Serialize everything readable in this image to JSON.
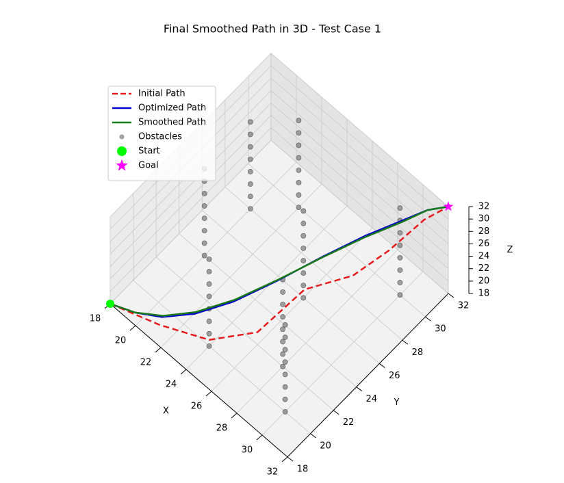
{
  "chart_data": {
    "type": "line3d",
    "title": "Final Smoothed Path in 3D - Test Case 1",
    "xlabel": "X",
    "ylabel": "Y",
    "zlabel": "Z",
    "xlim": [
      18,
      32
    ],
    "ylim": [
      18,
      32
    ],
    "zlim": [
      18,
      32
    ],
    "xticks": [
      18,
      20,
      22,
      24,
      26,
      28,
      30,
      32
    ],
    "yticks": [
      18,
      20,
      22,
      24,
      26,
      28,
      30,
      32
    ],
    "zticks": [
      18,
      20,
      22,
      24,
      26,
      28,
      30,
      32
    ],
    "grid": true,
    "legend": "upper left",
    "series": [
      {
        "name": "Obstacles",
        "type": "scatter",
        "marker": "circle",
        "color": "#808080",
        "x": [
          20,
          20,
          20,
          20,
          20,
          20,
          20,
          20,
          20,
          20,
          20,
          20,
          20,
          20,
          20,
          20,
          22,
          22,
          22,
          22,
          22,
          22,
          22,
          22,
          24,
          24,
          24,
          24,
          24,
          24,
          24,
          24,
          26,
          26,
          26,
          26,
          26,
          26,
          26,
          26,
          28,
          28,
          28,
          28,
          28,
          28,
          28,
          28,
          30,
          30,
          30,
          30,
          30,
          30,
          30,
          30,
          30,
          30,
          30,
          30,
          30,
          30,
          30,
          30
        ],
        "y": [
          24,
          24,
          24,
          24,
          24,
          24,
          24,
          24,
          28,
          28,
          28,
          28,
          28,
          28,
          28,
          28,
          30,
          30,
          30,
          30,
          30,
          30,
          30,
          30,
          20,
          20,
          20,
          20,
          20,
          20,
          20,
          20,
          26,
          26,
          26,
          26,
          26,
          26,
          26,
          26,
          22,
          22,
          22,
          22,
          22,
          22,
          22,
          22,
          30,
          30,
          30,
          30,
          30,
          30,
          30,
          30,
          20,
          20,
          20,
          20,
          20,
          20,
          20,
          20
        ],
        "z": [
          18,
          20,
          22,
          24,
          26,
          28,
          30,
          32,
          18,
          20,
          22,
          24,
          26,
          28,
          30,
          32,
          18,
          20,
          22,
          24,
          26,
          28,
          30,
          32,
          18,
          20,
          22,
          24,
          26,
          28,
          30,
          32,
          18,
          20,
          22,
          24,
          26,
          28,
          30,
          32,
          18,
          20,
          22,
          24,
          26,
          28,
          30,
          32,
          18,
          20,
          22,
          24,
          26,
          28,
          30,
          32,
          18,
          20,
          22,
          24,
          26,
          28,
          30,
          32
        ]
      },
      {
        "name": "Initial Path",
        "type": "line",
        "linestyle": "dashed",
        "color": "#e41a1c",
        "x": [
          18,
          21,
          24,
          26,
          27,
          29,
          30,
          31,
          32
        ],
        "y": [
          18,
          19,
          20,
          22,
          25,
          27,
          29,
          31,
          32
        ],
        "z": [
          18,
          18,
          19,
          20,
          23,
          25,
          27,
          30,
          32
        ]
      },
      {
        "name": "Optimized Path",
        "type": "line",
        "linestyle": "solid",
        "color": "#0000cc",
        "x": [
          18,
          19.5,
          21,
          22.5,
          24,
          25.5,
          27,
          28.5,
          30,
          31,
          32
        ],
        "y": [
          18,
          18.5,
          19.2,
          20.4,
          22.1,
          24.3,
          26.6,
          28.6,
          30.3,
          31.3,
          32
        ],
        "z": [
          18,
          18.3,
          18.9,
          19.8,
          21.2,
          23.1,
          25.3,
          27.5,
          29.5,
          31,
          32
        ]
      },
      {
        "name": "Smoothed Path",
        "type": "line",
        "linestyle": "solid",
        "color": "#1a7a1a",
        "x": [
          18,
          19.5,
          21,
          22.5,
          24,
          25.5,
          27,
          28.5,
          30,
          31,
          32
        ],
        "y": [
          18,
          18.5,
          19.3,
          20.5,
          22.2,
          24.3,
          26.5,
          28.5,
          30.2,
          31.3,
          32
        ],
        "z": [
          18,
          18.3,
          18.9,
          19.9,
          21.3,
          23.2,
          25.3,
          27.4,
          29.4,
          31,
          32
        ]
      },
      {
        "name": "Start",
        "type": "scatter",
        "marker": "circle",
        "color": "#00ff00",
        "x": [
          18
        ],
        "y": [
          18
        ],
        "z": [
          18
        ]
      },
      {
        "name": "Goal",
        "type": "scatter",
        "marker": "star",
        "color": "#ff00ff",
        "x": [
          32
        ],
        "y": [
          32
        ],
        "z": [
          32
        ]
      }
    ]
  }
}
